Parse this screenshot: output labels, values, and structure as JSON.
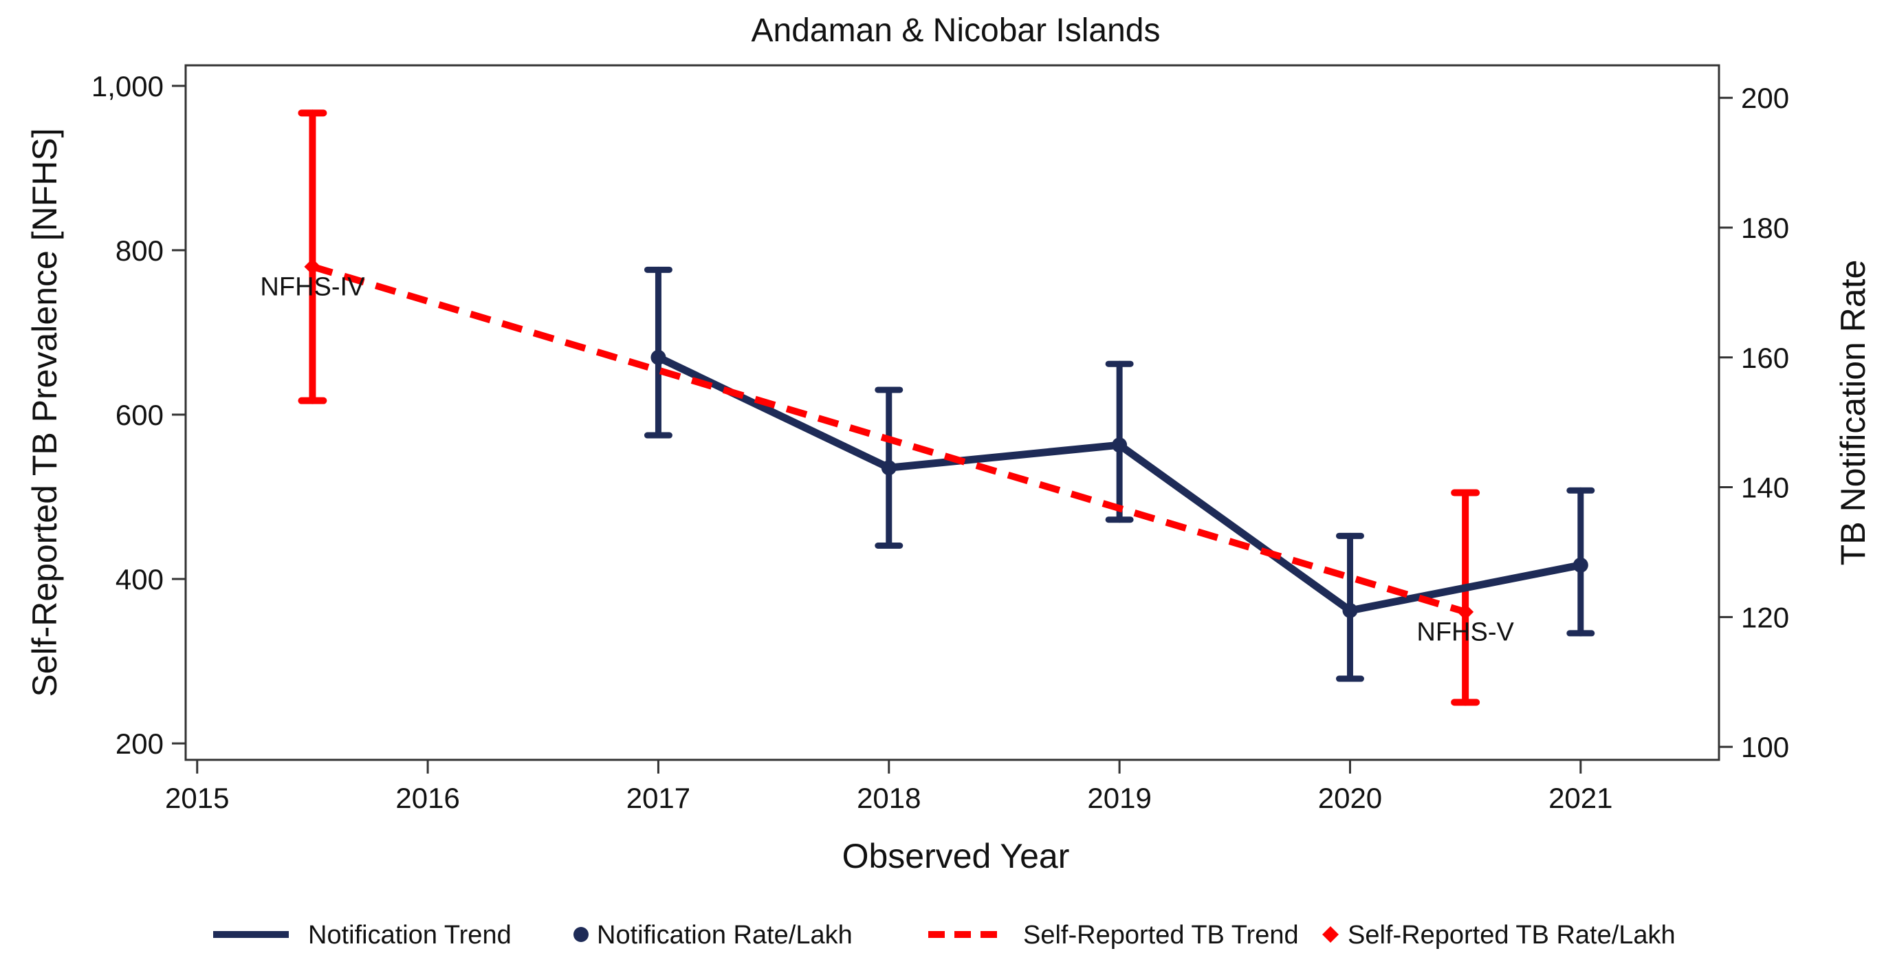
{
  "chart_data": {
    "type": "line",
    "title": "Andaman & Nicobar Islands",
    "xlabel": "Observed Year",
    "ylabel_left": "Self-Reported TB Prevalence [NFHS]",
    "ylabel_right": "TB Notification Rate",
    "xlim": [
      2014.95,
      2021.6
    ],
    "ylim_left": [
      180,
      1025
    ],
    "ylim_right": [
      98,
      205
    ],
    "x_ticks": [
      2015,
      2016,
      2017,
      2018,
      2019,
      2020,
      2021
    ],
    "y_left_ticks": [
      {
        "value": 200,
        "label": "200"
      },
      {
        "value": 400,
        "label": "400"
      },
      {
        "value": 600,
        "label": "600"
      },
      {
        "value": 800,
        "label": "800"
      },
      {
        "value": 1000,
        "label": "1,000"
      }
    ],
    "y_right_ticks": [
      {
        "value": 100,
        "label": "100"
      },
      {
        "value": 120,
        "label": "120"
      },
      {
        "value": 140,
        "label": "140"
      },
      {
        "value": 160,
        "label": "160"
      },
      {
        "value": 180,
        "label": "180"
      },
      {
        "value": 200,
        "label": "200"
      }
    ],
    "grid": false,
    "legend_position": "bottom",
    "colors": {
      "notification": "#1e2b57",
      "self_reported": "#ff0000"
    },
    "series": [
      {
        "name": "Notification Rate/Lakh",
        "axis": "right",
        "x": [
          2017,
          2018,
          2019,
          2020,
          2021
        ],
        "y": [
          160,
          143,
          146.5,
          121,
          128
        ],
        "ci_low": [
          148,
          131,
          135,
          110.5,
          117.5
        ],
        "ci_high": [
          173.5,
          155,
          159,
          132.5,
          139.5
        ]
      },
      {
        "name": "Self-Reported TB Rate/Lakh",
        "axis": "left",
        "x": [
          2015.5,
          2020.5
        ],
        "y": [
          780,
          360
        ],
        "ci_low": [
          617,
          250
        ],
        "ci_high": [
          967,
          505
        ]
      }
    ],
    "trend_lines": [
      {
        "name": "Notification Trend",
        "axis": "right",
        "x": [
          2017,
          2018,
          2019,
          2020,
          2021
        ],
        "y": [
          160,
          143,
          146.5,
          121,
          128
        ]
      },
      {
        "name": "Self-Reported TB Trend",
        "axis": "left",
        "x": [
          2015.5,
          2020.5
        ],
        "y": [
          780,
          360
        ]
      }
    ],
    "annotations": [
      {
        "text": "NFHS-IV",
        "x": 2015.5,
        "y": 745,
        "axis": "left"
      },
      {
        "text": "NFHS-V",
        "x": 2020.5,
        "y": 325,
        "axis": "left"
      }
    ],
    "legend": [
      {
        "label": "Notification Trend",
        "kind": "line"
      },
      {
        "label": "Notification Rate/Lakh",
        "kind": "dot"
      },
      {
        "label": "Self-Reported TB Trend",
        "kind": "dash"
      },
      {
        "label": "Self-Reported TB Rate/Lakh",
        "kind": "diamond"
      }
    ]
  }
}
